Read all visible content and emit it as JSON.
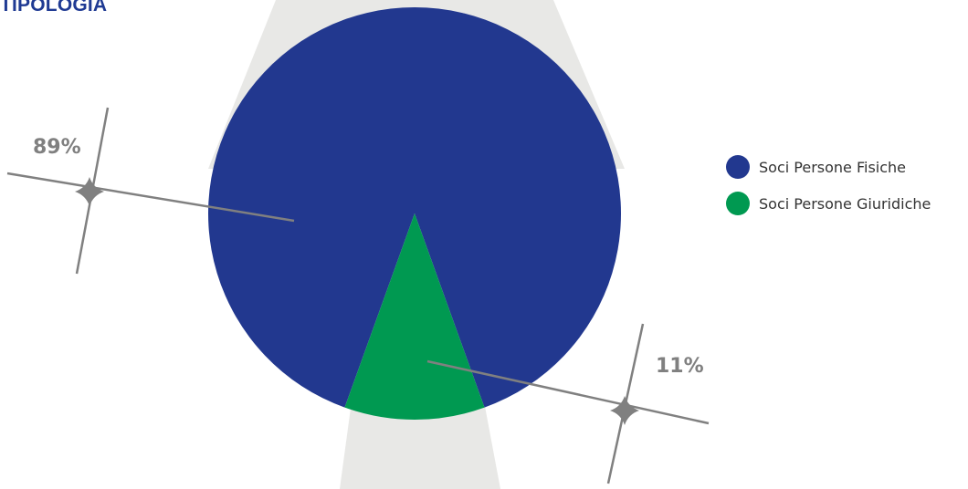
{
  "title": "TIPOLOGIA",
  "chart_data": {
    "type": "pie",
    "title": "TIPOLOGIA",
    "categories": [
      "Soci Persone Fisiche",
      "Soci Persone Giuridiche"
    ],
    "values": [
      89,
      11
    ],
    "value_labels": [
      "89%",
      "11%"
    ],
    "colors": [
      "#22388f",
      "#009951"
    ],
    "label_color": "#808080",
    "backdrop_color": "#e8e8e6",
    "legend_placement": "right"
  }
}
